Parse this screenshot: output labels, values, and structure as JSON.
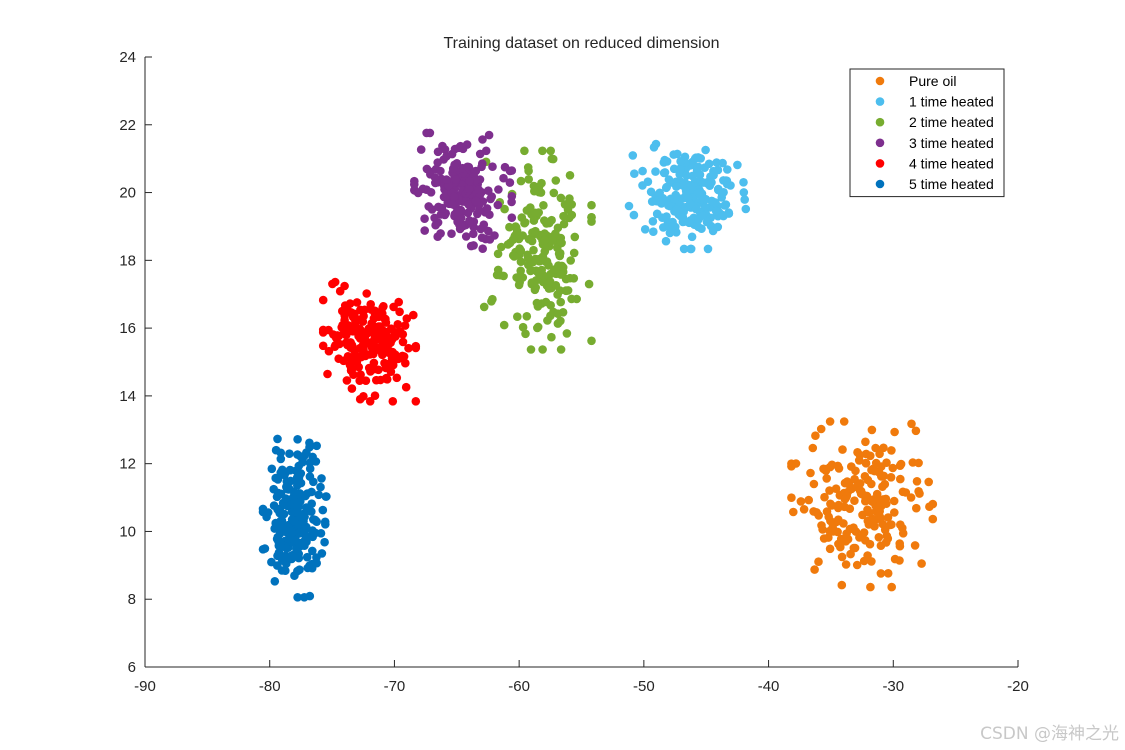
{
  "chart_data": {
    "type": "scatter",
    "title": "Training dataset on reduced dimension",
    "xlabel": "",
    "ylabel": "",
    "xlim": [
      -90,
      -20
    ],
    "ylim": [
      6,
      24
    ],
    "x_ticks": [
      -90,
      -80,
      -70,
      -60,
      -50,
      -40,
      -30,
      -20
    ],
    "y_ticks": [
      6,
      8,
      10,
      12,
      14,
      16,
      18,
      20,
      22,
      24
    ],
    "x_tick_labels": [
      "-90",
      "-80",
      "-70",
      "-60",
      "-50",
      "-40",
      "-30",
      "-20"
    ],
    "y_tick_labels": [
      "6",
      "8",
      "10",
      "12",
      "14",
      "16",
      "18",
      "20",
      "22",
      "24"
    ],
    "grid": false,
    "legend_position": "top-right",
    "series": [
      {
        "name": "Pure oil",
        "color": "#F07A0C",
        "center": [
          -32.5,
          10.8
        ],
        "spread": [
          2.9,
          1.25
        ],
        "count": 200
      },
      {
        "name": "1 time heated",
        "color": "#4DBEEE",
        "center": [
          -46.5,
          20.0
        ],
        "spread": [
          2.4,
          0.85
        ],
        "count": 200
      },
      {
        "name": "2 time heated",
        "color": "#77AC30",
        "center": [
          -58.5,
          18.3
        ],
        "spread": [
          2.2,
          1.5
        ],
        "count": 200
      },
      {
        "name": "3 time heated",
        "color": "#7E2F8E",
        "center": [
          -64.5,
          20.0
        ],
        "spread": [
          2.0,
          0.9
        ],
        "count": 200
      },
      {
        "name": "4 time heated",
        "color": "#FF0000",
        "center": [
          -72.0,
          15.6
        ],
        "spread": [
          1.9,
          0.9
        ],
        "count": 200
      },
      {
        "name": "5 time heated",
        "color": "#0072BD",
        "center": [
          -78.0,
          10.5
        ],
        "spread": [
          1.3,
          1.25
        ],
        "count": 200
      }
    ]
  },
  "watermark": "CSDN @海神之光"
}
